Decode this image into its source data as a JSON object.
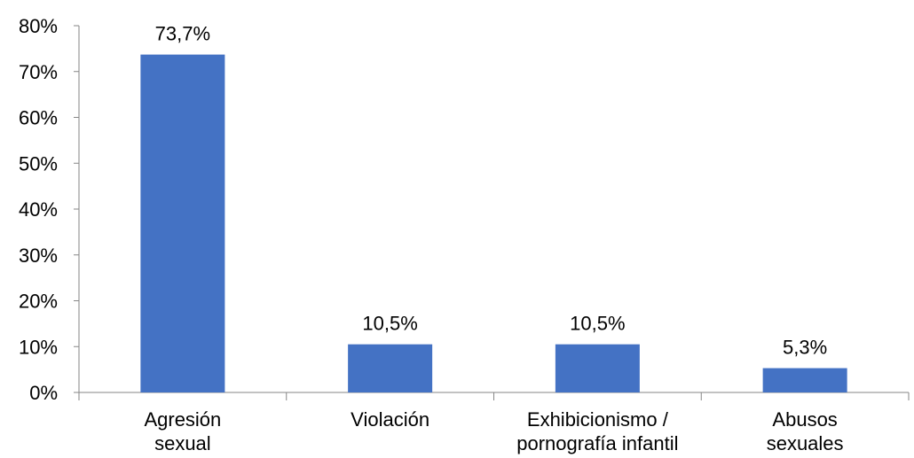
{
  "chart_data": {
    "type": "bar",
    "title": "",
    "xlabel": "",
    "ylabel": "",
    "categories": [
      [
        "Agresión",
        "sexual"
      ],
      [
        "Violación"
      ],
      [
        "Exhibicionismo /",
        "pornografía infantil"
      ],
      [
        "Abusos",
        "sexuales"
      ]
    ],
    "values": [
      73.7,
      10.5,
      10.5,
      5.3
    ],
    "data_labels": [
      "73,7%",
      "10,5%",
      "10,5%",
      "5,3%"
    ],
    "ylim": [
      0,
      80
    ],
    "yticks": [
      0,
      10,
      20,
      30,
      40,
      50,
      60,
      70,
      80
    ],
    "ytick_labels": [
      "0%",
      "10%",
      "20%",
      "30%",
      "40%",
      "50%",
      "60%",
      "70%",
      "80%"
    ],
    "grid": false,
    "legend": "none",
    "bar_color": "#4472C4",
    "axis_color": "#868686"
  }
}
